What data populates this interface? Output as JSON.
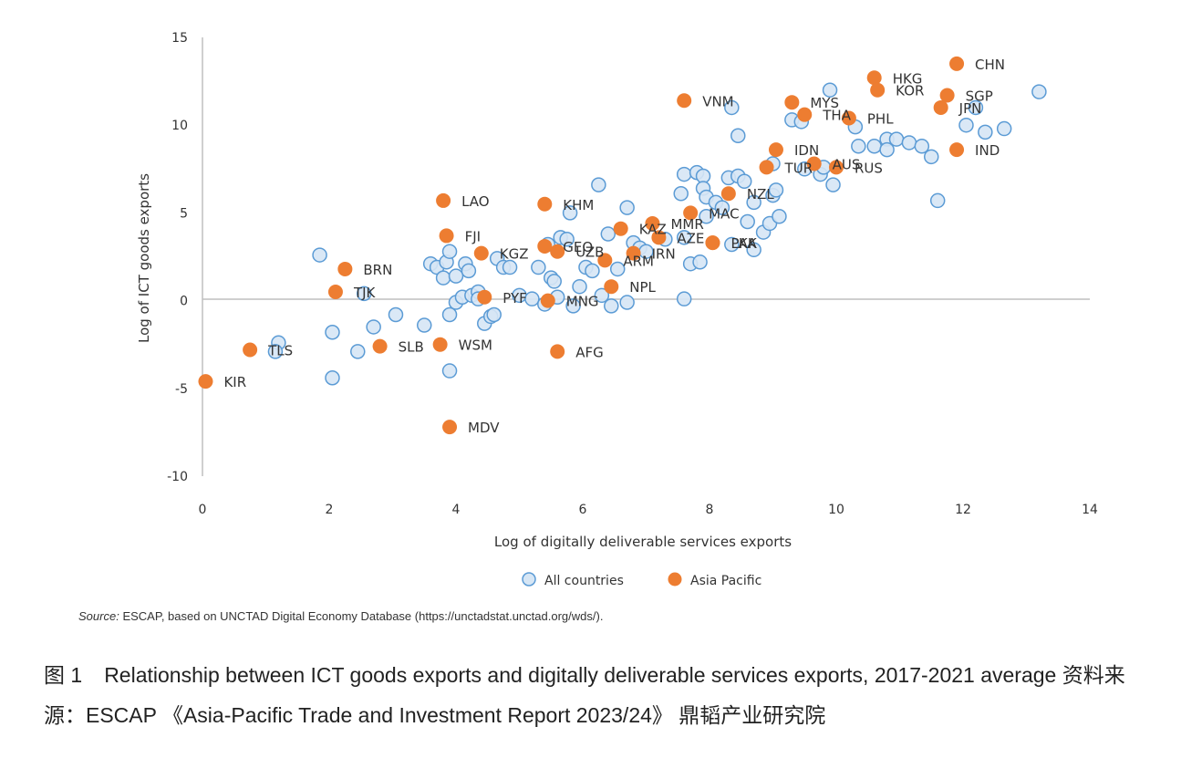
{
  "chart_data": {
    "type": "scatter",
    "title": "",
    "xlabel": "Log of digitally deliverable services exports",
    "ylabel": "Log of ICT goods exports",
    "xlim": [
      0,
      14
    ],
    "ylim": [
      -10,
      15
    ],
    "xticks": [
      0,
      2,
      4,
      6,
      8,
      10,
      12,
      14
    ],
    "yticks": [
      -10,
      -5,
      0,
      5,
      10,
      15
    ],
    "xtick_labels": [
      "0",
      "2",
      "4",
      "6",
      "8",
      "10",
      "12",
      "14"
    ],
    "ytick_labels": [
      "-10",
      "-5",
      "0",
      "5",
      "10",
      "15"
    ],
    "grid": false,
    "zero_line": true,
    "legend_position": "bottom-center",
    "series": [
      {
        "name": "All countries",
        "color": "#d6e6f5",
        "stroke": "#5b9bd5",
        "points": [
          [
            1.85,
            2.6
          ],
          [
            1.2,
            -2.4
          ],
          [
            1.15,
            -2.9
          ],
          [
            2.05,
            -1.8
          ],
          [
            2.05,
            -4.4
          ],
          [
            2.45,
            -2.9
          ],
          [
            2.7,
            -1.5
          ],
          [
            3.05,
            -0.8
          ],
          [
            3.5,
            -1.4
          ],
          [
            2.55,
            0.4
          ],
          [
            3.6,
            2.1
          ],
          [
            3.7,
            1.9
          ],
          [
            3.8,
            1.3
          ],
          [
            3.85,
            2.2
          ],
          [
            3.9,
            2.8
          ],
          [
            4.0,
            1.4
          ],
          [
            4.15,
            2.1
          ],
          [
            4.2,
            1.7
          ],
          [
            3.9,
            -0.8
          ],
          [
            3.9,
            -4.0
          ],
          [
            4.0,
            -0.1
          ],
          [
            4.1,
            0.2
          ],
          [
            4.25,
            0.3
          ],
          [
            4.35,
            0.5
          ],
          [
            4.45,
            -1.3
          ],
          [
            4.55,
            -0.9
          ],
          [
            4.6,
            -0.8
          ],
          [
            4.35,
            0.1
          ],
          [
            4.65,
            2.4
          ],
          [
            4.75,
            1.9
          ],
          [
            4.85,
            1.9
          ],
          [
            5.0,
            0.3
          ],
          [
            5.2,
            0.1
          ],
          [
            5.3,
            1.9
          ],
          [
            5.4,
            -0.2
          ],
          [
            5.5,
            1.3
          ],
          [
            5.55,
            1.1
          ],
          [
            5.6,
            0.2
          ],
          [
            5.45,
            3.2
          ],
          [
            5.65,
            3.6
          ],
          [
            5.75,
            3.5
          ],
          [
            5.8,
            5.0
          ],
          [
            5.85,
            -0.3
          ],
          [
            5.95,
            0.8
          ],
          [
            6.05,
            1.9
          ],
          [
            6.15,
            1.7
          ],
          [
            6.25,
            6.6
          ],
          [
            6.3,
            0.3
          ],
          [
            6.45,
            -0.3
          ],
          [
            6.4,
            3.8
          ],
          [
            6.55,
            1.8
          ],
          [
            6.7,
            5.3
          ],
          [
            6.7,
            -0.1
          ],
          [
            6.8,
            3.3
          ],
          [
            6.9,
            3.0
          ],
          [
            7.0,
            2.8
          ],
          [
            7.3,
            3.5
          ],
          [
            7.6,
            3.6
          ],
          [
            7.6,
            0.1
          ],
          [
            7.55,
            6.1
          ],
          [
            7.6,
            7.2
          ],
          [
            7.7,
            2.1
          ],
          [
            7.8,
            7.3
          ],
          [
            7.9,
            7.1
          ],
          [
            7.9,
            6.4
          ],
          [
            7.95,
            5.9
          ],
          [
            7.85,
            2.2
          ],
          [
            7.95,
            4.8
          ],
          [
            8.1,
            5.6
          ],
          [
            8.2,
            5.3
          ],
          [
            8.35,
            3.2
          ],
          [
            8.3,
            7.0
          ],
          [
            8.45,
            7.1
          ],
          [
            8.55,
            6.8
          ],
          [
            8.6,
            4.5
          ],
          [
            8.7,
            5.6
          ],
          [
            8.7,
            2.9
          ],
          [
            8.85,
            3.9
          ],
          [
            8.95,
            4.4
          ],
          [
            9.0,
            6.0
          ],
          [
            9.1,
            4.8
          ],
          [
            9.05,
            6.3
          ],
          [
            8.45,
            9.4
          ],
          [
            8.35,
            11.0
          ],
          [
            9.0,
            7.8
          ],
          [
            9.3,
            10.3
          ],
          [
            9.45,
            10.2
          ],
          [
            9.5,
            7.5
          ],
          [
            9.75,
            7.2
          ],
          [
            9.8,
            7.6
          ],
          [
            9.95,
            6.6
          ],
          [
            9.9,
            12.0
          ],
          [
            10.3,
            9.9
          ],
          [
            10.35,
            8.8
          ],
          [
            10.6,
            8.8
          ],
          [
            10.8,
            9.2
          ],
          [
            10.8,
            8.6
          ],
          [
            10.95,
            9.2
          ],
          [
            11.15,
            9.0
          ],
          [
            11.35,
            8.8
          ],
          [
            11.5,
            8.2
          ],
          [
            11.6,
            5.7
          ],
          [
            12.05,
            10.0
          ],
          [
            12.2,
            11.0
          ],
          [
            12.35,
            9.6
          ],
          [
            12.65,
            9.8
          ],
          [
            13.2,
            11.9
          ]
        ]
      },
      {
        "name": "Asia Pacific",
        "color": "#ed7d31",
        "points": [
          {
            "code": "CHN",
            "x": 11.9,
            "y": 13.5
          },
          {
            "code": "HKG",
            "x": 10.6,
            "y": 12.7
          },
          {
            "code": "KOR",
            "x": 10.65,
            "y": 12.0
          },
          {
            "code": "SGP",
            "x": 11.75,
            "y": 11.7
          },
          {
            "code": "JPN",
            "x": 11.65,
            "y": 11.0
          },
          {
            "code": "IND",
            "x": 11.9,
            "y": 8.6
          },
          {
            "code": "VNM",
            "x": 7.6,
            "y": 11.4
          },
          {
            "code": "MYS",
            "x": 9.3,
            "y": 11.3
          },
          {
            "code": "THA",
            "x": 9.5,
            "y": 10.6
          },
          {
            "code": "PHL",
            "x": 10.2,
            "y": 10.4
          },
          {
            "code": "IDN",
            "x": 9.05,
            "y": 8.6
          },
          {
            "code": "TUR",
            "x": 8.9,
            "y": 7.6
          },
          {
            "code": "AUS",
            "x": 9.65,
            "y": 7.8
          },
          {
            "code": "RUS",
            "x": 10.0,
            "y": 7.6
          },
          {
            "code": "NZL",
            "x": 8.3,
            "y": 6.1
          },
          {
            "code": "MAC",
            "x": 7.7,
            "y": 5.0
          },
          {
            "code": "MMR",
            "x": 7.1,
            "y": 4.4
          },
          {
            "code": "KAZ",
            "x": 6.6,
            "y": 4.1
          },
          {
            "code": "LKA",
            "x": 8.05,
            "y": 3.3
          },
          {
            "code": "PAK",
            "x": 8.05,
            "y": 3.3
          },
          {
            "code": "IRN",
            "x": 6.8,
            "y": 2.7
          },
          {
            "code": "AZE",
            "x": 7.2,
            "y": 3.6
          },
          {
            "code": "ARM",
            "x": 6.35,
            "y": 2.3
          },
          {
            "code": "GEO",
            "x": 5.4,
            "y": 3.1
          },
          {
            "code": "UZB",
            "x": 5.6,
            "y": 2.8
          },
          {
            "code": "NPL",
            "x": 6.45,
            "y": 0.8
          },
          {
            "code": "MNG",
            "x": 5.45,
            "y": 0.0
          },
          {
            "code": "PYF",
            "x": 4.45,
            "y": 0.2
          },
          {
            "code": "KGZ",
            "x": 4.4,
            "y": 2.7
          },
          {
            "code": "KHM",
            "x": 5.4,
            "y": 5.5
          },
          {
            "code": "LAO",
            "x": 3.8,
            "y": 5.7
          },
          {
            "code": "FJI",
            "x": 3.85,
            "y": 3.7
          },
          {
            "code": "BRN",
            "x": 2.25,
            "y": 1.8
          },
          {
            "code": "TJK",
            "x": 2.1,
            "y": 0.5
          },
          {
            "code": "SLB",
            "x": 2.8,
            "y": -2.6
          },
          {
            "code": "WSM",
            "x": 3.75,
            "y": -2.5
          },
          {
            "code": "AFG",
            "x": 5.6,
            "y": -2.9
          },
          {
            "code": "MDV",
            "x": 3.9,
            "y": -7.2
          },
          {
            "code": "TLS",
            "x": 0.75,
            "y": -2.8
          },
          {
            "code": "KIR",
            "x": 0.05,
            "y": -4.6
          }
        ]
      }
    ],
    "legend": [
      {
        "label": "All countries",
        "marker": "hollow-circle-light-blue"
      },
      {
        "label": "Asia Pacific",
        "marker": "filled-circle-orange"
      }
    ]
  },
  "source": {
    "label": "Source:",
    "text": "ESCAP, based on UNCTAD Digital Economy Database (https://unctadstat.unctad.org/wds/)."
  },
  "caption": {
    "figure_number": "图 1",
    "text": "Relationship between ICT goods exports and digitally deliverable services exports, 2017-2021 average  资料来源：ESCAP 《Asia-Pacific Trade and Investment Report 2023/24》 鼎韬产业研究院"
  }
}
